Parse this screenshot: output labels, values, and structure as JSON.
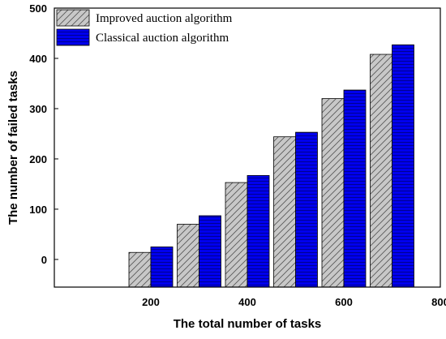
{
  "chart_data": {
    "type": "bar",
    "xlabel": "The total number of tasks",
    "ylabel": "The number of failed tasks",
    "x_ticks": [
      200,
      400,
      600,
      800
    ],
    "y_ticks": [
      0,
      100,
      200,
      300,
      400,
      500
    ],
    "xlim": [
      0,
      800
    ],
    "ylim": [
      -55,
      500
    ],
    "grid": false,
    "legend_position": "top-left",
    "x": [
      200,
      300,
      400,
      500,
      600,
      700
    ],
    "series": [
      {
        "name": "Improved auction algorithm",
        "values": [
          14,
          70,
          153,
          244,
          320,
          408
        ],
        "color": "#c8c8c8",
        "pattern": "diagonal-hatch"
      },
      {
        "name": "Classical auction algorithm",
        "values": [
          25,
          87,
          167,
          253,
          337,
          427
        ],
        "color": "#0000ee",
        "pattern": "horizontal-lines"
      }
    ]
  }
}
